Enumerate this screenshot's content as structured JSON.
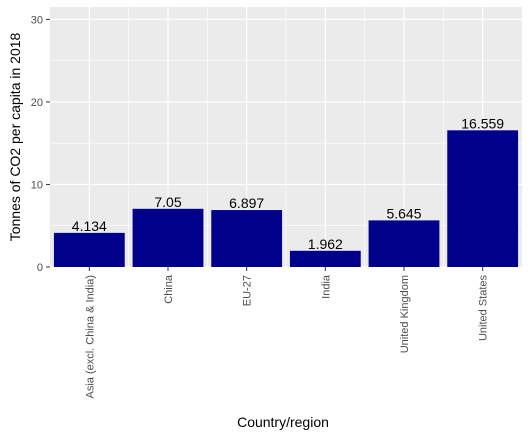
{
  "chart_data": {
    "type": "bar",
    "categories": [
      "Asia (excl. China & India)",
      "China",
      "EU-27",
      "India",
      "United Kingdom",
      "United States"
    ],
    "values": [
      4.134,
      7.05,
      6.897,
      1.962,
      5.645,
      16.559
    ],
    "value_labels": [
      "4.134",
      "7.05",
      "6.897",
      "1.962",
      "5.645",
      "16.559"
    ],
    "xlabel": "Country/region",
    "ylabel": "Tonnes of CO2 per capita in 2018",
    "ylim": [
      0,
      31.5
    ],
    "yticks": [
      0,
      10,
      20,
      30
    ],
    "ytick_labels": [
      "0",
      "10",
      "20",
      "30"
    ],
    "grid": true,
    "legend": "none",
    "colors": {
      "bar": "#00008B",
      "panel": "#EBEBEB",
      "grid": "#FFFFFF",
      "tick_text": "#4D4D4D",
      "tick": "#333333"
    }
  }
}
